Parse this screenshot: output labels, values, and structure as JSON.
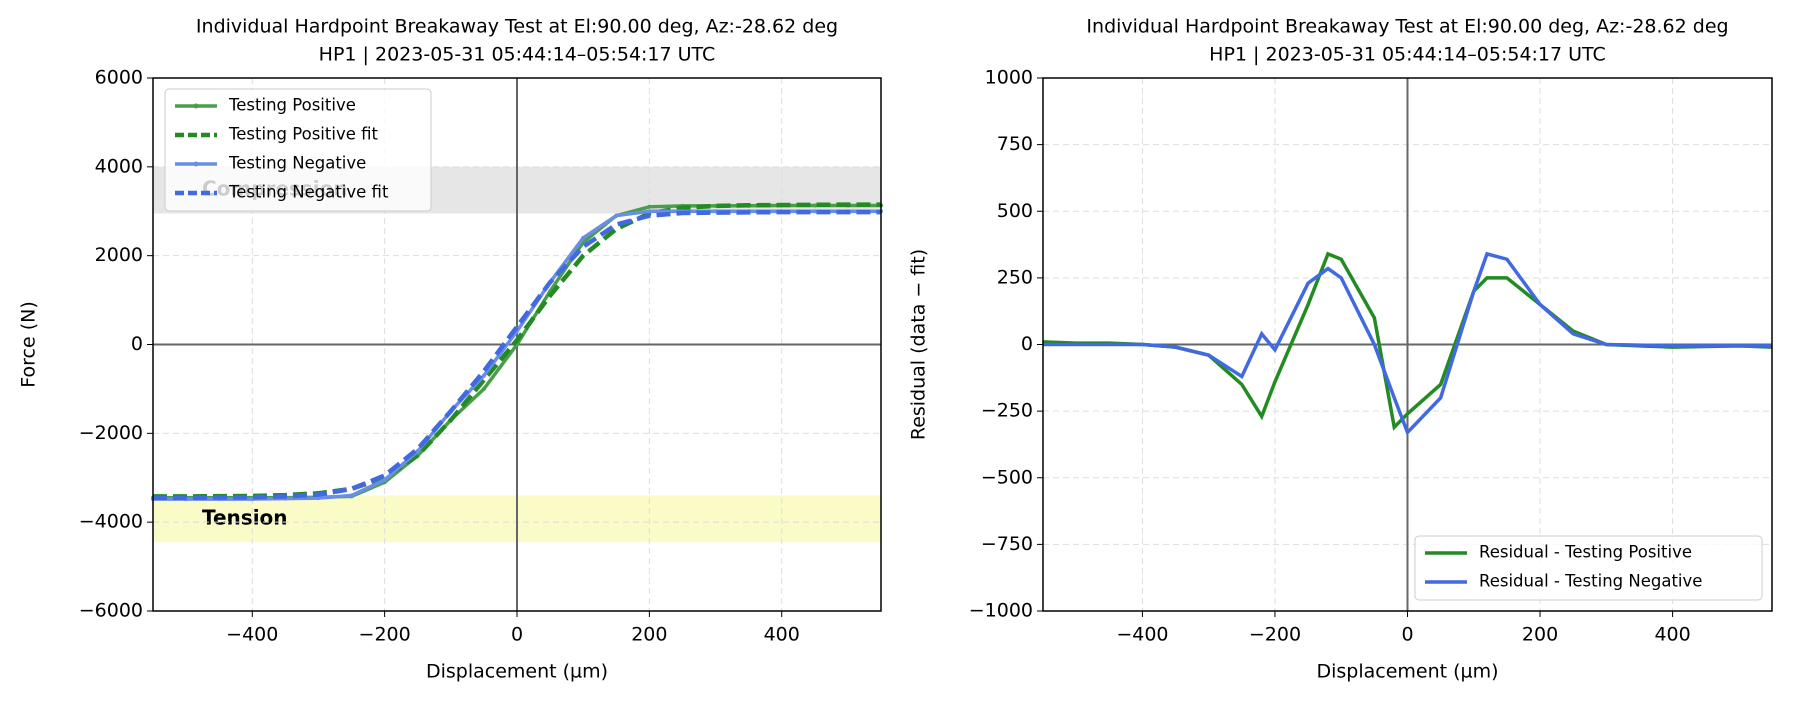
{
  "chart_data": [
    {
      "type": "line",
      "title": "Individual Hardpoint Breakaway Test at El:90.00 deg, Az:-28.62 deg",
      "subtitle": "HP1 | 2023-05-31 05:44:14–05:54:17 UTC",
      "xlabel": "Displacement (µm)",
      "ylabel": "Force (N)",
      "xlim": [
        -550,
        550
      ],
      "ylim": [
        -6000,
        6000
      ],
      "xticks": [
        {
          "value": -400,
          "label": "−400"
        },
        {
          "value": -200,
          "label": "−200"
        },
        0,
        200,
        400
      ],
      "yticks": [
        {
          "value": -6000,
          "label": "−6000"
        },
        {
          "value": -4000,
          "label": "−4000"
        },
        {
          "value": -2000,
          "label": "−2000"
        },
        0,
        2000,
        4000,
        6000
      ],
      "grid": true,
      "legend": "upper left",
      "bands": [
        {
          "label": "Compression",
          "range": [
            2950,
            4000
          ],
          "color": "#e6e6e6"
        },
        {
          "label": "Tension",
          "range": [
            -4450,
            -3400
          ],
          "color": "#fbfbc8"
        }
      ],
      "x": [
        -550,
        -500,
        -450,
        -400,
        -350,
        -300,
        -250,
        -200,
        -150,
        -100,
        -50,
        0,
        50,
        100,
        150,
        200,
        250,
        300,
        350,
        400,
        450,
        500,
        550
      ],
      "series": [
        {
          "name": "Testing Positive",
          "color": "#4a9e4a",
          "style": "solid",
          "marker": true,
          "values": [
            -3450,
            -3450,
            -3450,
            -3450,
            -3450,
            -3440,
            -3420,
            -3100,
            -2500,
            -1700,
            -1000,
            0,
            1200,
            2300,
            2900,
            3100,
            3120,
            3120,
            3125,
            3130,
            3130,
            3130,
            3130
          ]
        },
        {
          "name": "Testing Positive fit",
          "color": "#228b22",
          "style": "dashed",
          "marker": false,
          "values": [
            -3420,
            -3420,
            -3415,
            -3410,
            -3390,
            -3350,
            -3250,
            -3000,
            -2500,
            -1700,
            -800,
            100,
            1100,
            2000,
            2600,
            2950,
            3080,
            3120,
            3135,
            3140,
            3145,
            3150,
            3150
          ]
        },
        {
          "name": "Testing Negative",
          "color": "#6a8ee6",
          "style": "solid",
          "marker": true,
          "values": [
            -3480,
            -3480,
            -3480,
            -3480,
            -3470,
            -3460,
            -3400,
            -3050,
            -2400,
            -1500,
            -700,
            300,
            1400,
            2400,
            2900,
            3000,
            3000,
            3000,
            3000,
            3000,
            3000,
            3000,
            3000
          ]
        },
        {
          "name": "Testing Negative fit",
          "color": "#4169e1",
          "style": "dashed",
          "marker": false,
          "values": [
            -3450,
            -3450,
            -3445,
            -3440,
            -3420,
            -3380,
            -3250,
            -2950,
            -2350,
            -1500,
            -600,
            400,
            1400,
            2200,
            2700,
            2900,
            2960,
            2970,
            2975,
            2980,
            2980,
            2980,
            2980
          ]
        }
      ]
    },
    {
      "type": "line",
      "title": "Individual Hardpoint Breakaway Test at El:90.00 deg, Az:-28.62 deg",
      "subtitle": "HP1 | 2023-05-31 05:44:14–05:54:17 UTC",
      "xlabel": "Displacement (µm)",
      "ylabel": "Residual (data − fit)",
      "xlim": [
        -550,
        550
      ],
      "ylim": [
        -1000,
        1000
      ],
      "xticks": [
        {
          "value": -400,
          "label": "−400"
        },
        {
          "value": -200,
          "label": "−200"
        },
        0,
        200,
        400
      ],
      "yticks": [
        {
          "value": -1000,
          "label": "−1000"
        },
        {
          "value": -750,
          "label": "−750"
        },
        {
          "value": -500,
          "label": "−500"
        },
        {
          "value": -250,
          "label": "−250"
        },
        0,
        250,
        500,
        750,
        1000
      ],
      "grid": true,
      "legend": "lower right",
      "x": [
        -550,
        -500,
        -450,
        -400,
        -350,
        -300,
        -250,
        -220,
        -200,
        -150,
        -120,
        -100,
        -50,
        -20,
        0,
        50,
        100,
        120,
        150,
        200,
        250,
        300,
        400,
        500,
        550
      ],
      "series": [
        {
          "name": "Residual - Testing Positive",
          "color": "#228b22",
          "style": "solid",
          "marker": false,
          "values": [
            10,
            5,
            5,
            0,
            -10,
            -40,
            -150,
            -270,
            -140,
            150,
            340,
            320,
            100,
            -310,
            -260,
            -150,
            200,
            250,
            250,
            150,
            50,
            0,
            -10,
            -5,
            -10
          ]
        },
        {
          "name": "Residual - Testing Negative",
          "color": "#4169e1",
          "style": "solid",
          "marker": false,
          "values": [
            0,
            0,
            0,
            0,
            -10,
            -40,
            -120,
            40,
            -20,
            230,
            285,
            250,
            0,
            -200,
            -330,
            -200,
            200,
            340,
            320,
            150,
            40,
            0,
            -5,
            -5,
            -5
          ]
        }
      ]
    }
  ]
}
